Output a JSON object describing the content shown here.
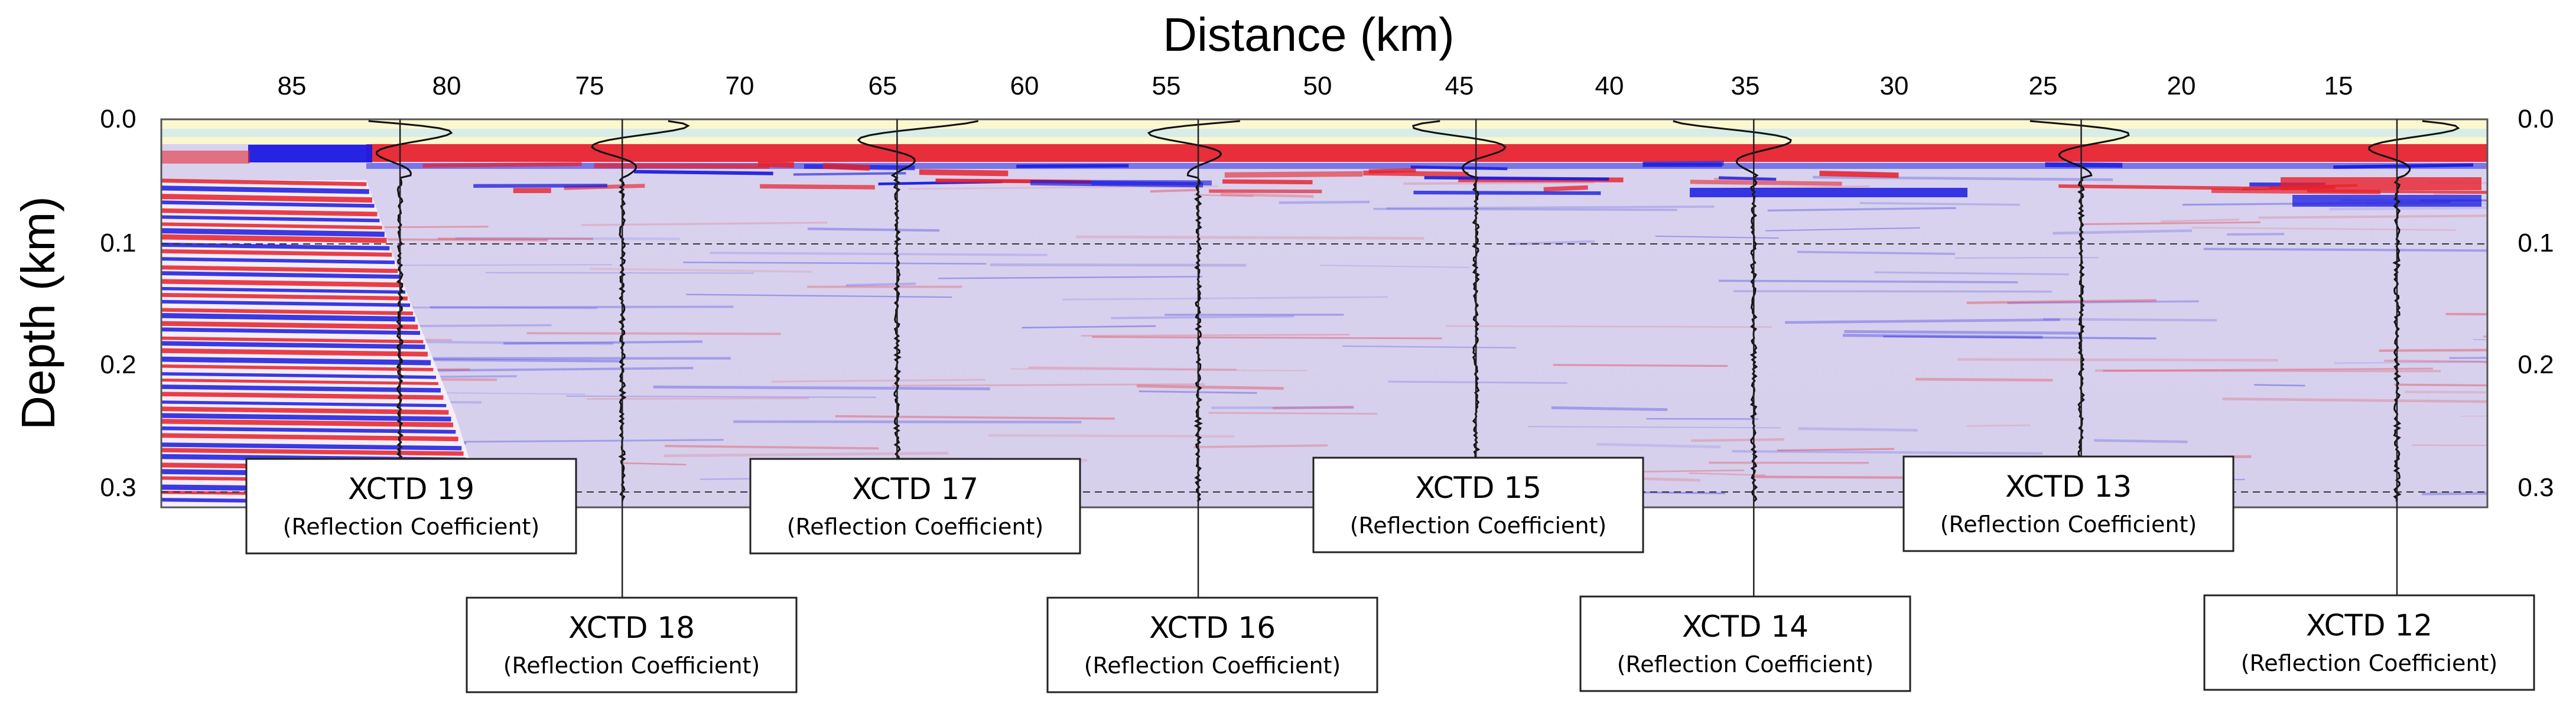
{
  "figure": {
    "x_title": "Distance (km)",
    "y_title": "Depth (km)",
    "x_ticks": [
      "85",
      "80",
      "75",
      "70",
      "65",
      "60",
      "55",
      "50",
      "45",
      "40",
      "35",
      "30",
      "25",
      "20",
      "15"
    ],
    "y_ticks_left": [
      "0.0",
      "0.1",
      "0.2",
      "0.3"
    ],
    "y_ticks_right": [
      "0.0",
      "0.1",
      "0.2",
      "0.3"
    ],
    "colors": {
      "red": "#e8202a",
      "blue": "#1a1ae0",
      "sea": "#fbf7cf",
      "water": "#cfe8ee",
      "background": "#d9d4ee"
    }
  },
  "probes": [
    {
      "label": "XCTD 19",
      "sub": "(Reflection Coefficient)",
      "distance_km": 81.3,
      "row": "upper"
    },
    {
      "label": "XCTD 18",
      "sub": "(Reflection Coefficient)",
      "distance_km": 73.7,
      "row": "lower"
    },
    {
      "label": "XCTD 17",
      "sub": "(Reflection Coefficient)",
      "distance_km": 64.3,
      "row": "upper"
    },
    {
      "label": "XCTD 16",
      "sub": "(Reflection Coefficient)",
      "distance_km": 54.0,
      "row": "lower"
    },
    {
      "label": "XCTD 15",
      "sub": "(Reflection Coefficient)",
      "distance_km": 44.5,
      "row": "upper"
    },
    {
      "label": "XCTD 14",
      "sub": "(Reflection Coefficient)",
      "distance_km": 35.0,
      "row": "lower"
    },
    {
      "label": "XCTD 13",
      "sub": "(Reflection Coefficient)",
      "distance_km": 23.8,
      "row": "upper"
    },
    {
      "label": "XCTD 12",
      "sub": "(Reflection Coefficient)",
      "distance_km": 13.0,
      "row": "lower"
    }
  ]
}
